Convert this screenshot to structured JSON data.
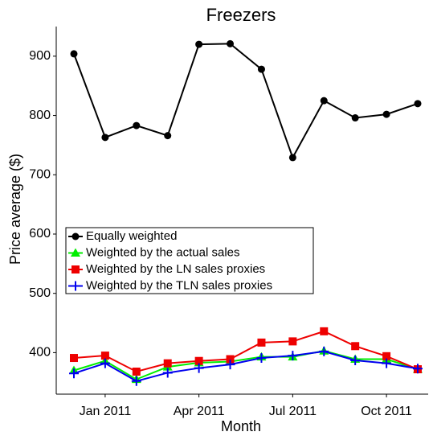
{
  "chart_data": {
    "type": "line",
    "title": "Freezers",
    "x_label": "Month",
    "y_label": "Price average ($)",
    "x": [
      "2010-12",
      "2011-01",
      "2011-02",
      "2011-03",
      "2011-04",
      "2011-05",
      "2011-06",
      "2011-07",
      "2011-08",
      "2011-09",
      "2011-10",
      "2011-11"
    ],
    "xlim": [
      "2010-12",
      "2011-11"
    ],
    "xticks": [
      {
        "value": "2011-01",
        "label": "Jan 2011"
      },
      {
        "value": "2011-04",
        "label": "Apr 2011"
      },
      {
        "value": "2011-07",
        "label": "Jul 2011"
      },
      {
        "value": "2011-10",
        "label": "Oct 2011"
      }
    ],
    "ylim": [
      330,
      950
    ],
    "yticks": [
      400,
      500,
      600,
      700,
      800,
      900
    ],
    "legend_position": "left",
    "series": [
      {
        "name": "Equally weighted",
        "color": "#000000",
        "marker": "circle",
        "values": [
          904,
          763,
          783,
          766,
          920,
          921,
          878,
          729,
          825,
          796,
          802,
          820
        ]
      },
      {
        "name": "Weighted by the actual sales",
        "color": "#00ee00",
        "marker": "triangle",
        "values": [
          370,
          386,
          355,
          376,
          383,
          385,
          393,
          393,
          403,
          389,
          389,
          372
        ]
      },
      {
        "name": "Weighted by the LN sales proxies",
        "color": "#ee0000",
        "marker": "square",
        "values": [
          391,
          395,
          368,
          382,
          386,
          389,
          417,
          419,
          436,
          411,
          394,
          372
        ]
      },
      {
        "name": "Weighted by the TLN sales proxies",
        "color": "#0000ee",
        "marker": "plus",
        "values": [
          365,
          382,
          352,
          366,
          374,
          380,
          391,
          395,
          402,
          387,
          382,
          373
        ]
      }
    ]
  }
}
